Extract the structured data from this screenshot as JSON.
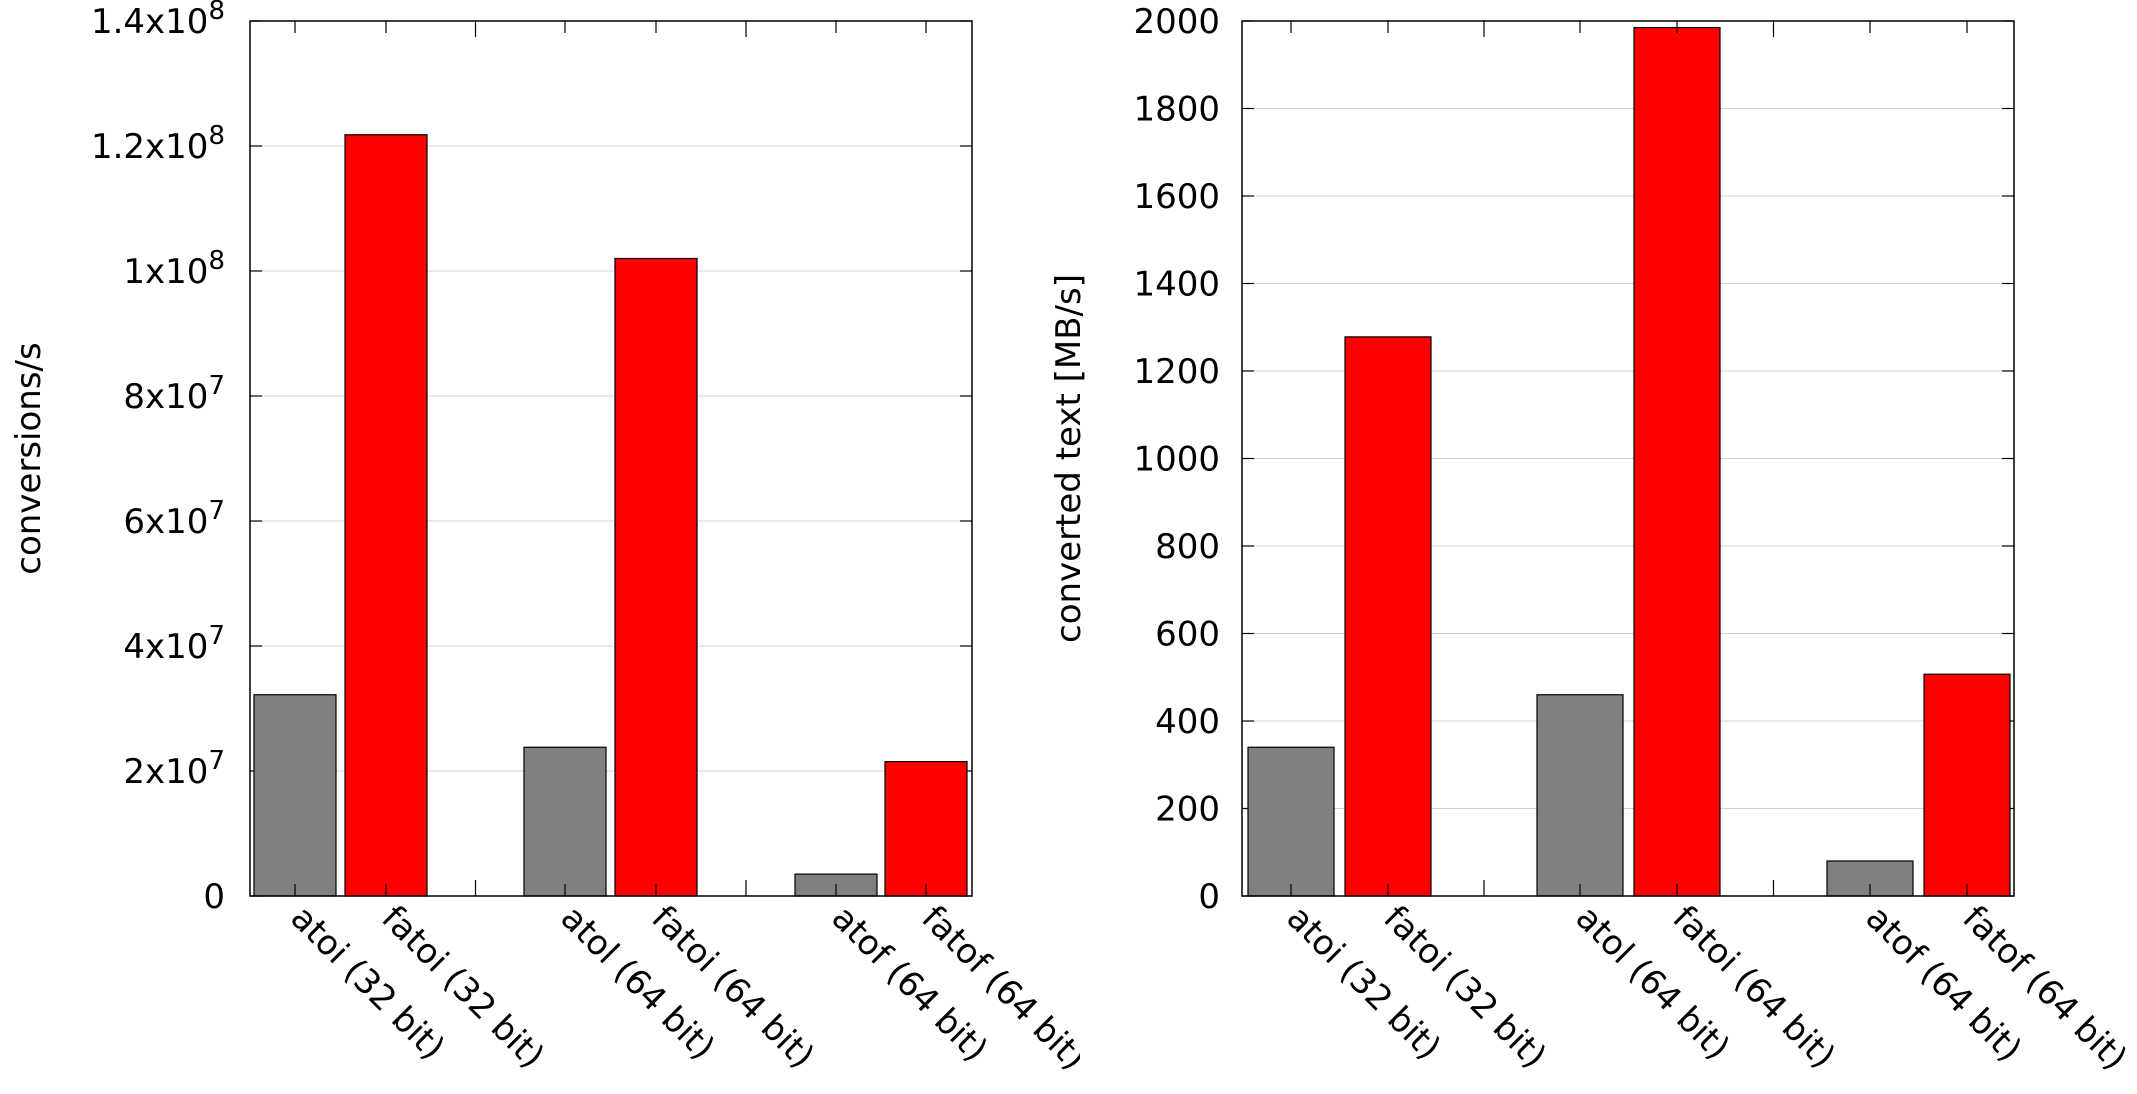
{
  "colors": {
    "baseline": "#808080",
    "fast": "#ff0000",
    "grid": "#d0d0d0",
    "axis": "#000000"
  },
  "chart_data": [
    {
      "type": "bar",
      "title": "",
      "xlabel": "",
      "ylabel": "conversions/s",
      "ylim": [
        0,
        140000000
      ],
      "yticks": [
        {
          "value": 0,
          "mantissa": "0",
          "exponent": ""
        },
        {
          "value": 20000000,
          "mantissa": "2x10",
          "exponent": "7"
        },
        {
          "value": 40000000,
          "mantissa": "4x10",
          "exponent": "7"
        },
        {
          "value": 60000000,
          "mantissa": "6x10",
          "exponent": "7"
        },
        {
          "value": 80000000,
          "mantissa": "8x10",
          "exponent": "7"
        },
        {
          "value": 100000000,
          "mantissa": "1x10",
          "exponent": "8"
        },
        {
          "value": 120000000,
          "mantissa": "1.2x10",
          "exponent": "8"
        },
        {
          "value": 140000000,
          "mantissa": "1.4x10",
          "exponent": "8"
        }
      ],
      "grid": true,
      "categories": [
        "atoi (32 bit)",
        "fatoi (32 bit)",
        "atol (64 bit)",
        "fatoi (64 bit)",
        "atof (64 bit)",
        "fatof (64 bit)"
      ],
      "values": [
        32200000,
        121800000,
        23800000,
        102000000,
        3500000,
        21500000
      ],
      "bar_colors": [
        "#808080",
        "#ff0000",
        "#808080",
        "#ff0000",
        "#808080",
        "#ff0000"
      ]
    },
    {
      "type": "bar",
      "title": "",
      "xlabel": "",
      "ylabel": "converted text [MB/s]",
      "ylim": [
        0,
        2000
      ],
      "yticks": [
        {
          "value": 0,
          "mantissa": "0",
          "exponent": ""
        },
        {
          "value": 200,
          "mantissa": "200",
          "exponent": ""
        },
        {
          "value": 400,
          "mantissa": "400",
          "exponent": ""
        },
        {
          "value": 600,
          "mantissa": "600",
          "exponent": ""
        },
        {
          "value": 800,
          "mantissa": "800",
          "exponent": ""
        },
        {
          "value": 1000,
          "mantissa": "1000",
          "exponent": ""
        },
        {
          "value": 1200,
          "mantissa": "1200",
          "exponent": ""
        },
        {
          "value": 1400,
          "mantissa": "1400",
          "exponent": ""
        },
        {
          "value": 1600,
          "mantissa": "1600",
          "exponent": ""
        },
        {
          "value": 1800,
          "mantissa": "1800",
          "exponent": ""
        },
        {
          "value": 2000,
          "mantissa": "2000",
          "exponent": ""
        }
      ],
      "grid": true,
      "categories": [
        "atoi (32 bit)",
        "fatoi (32 bit)",
        "atol (64 bit)",
        "fatoi (64 bit)",
        "atof (64 bit)",
        "fatof (64 bit)"
      ],
      "values": [
        340,
        1278,
        460,
        1985,
        80,
        507
      ],
      "bar_colors": [
        "#808080",
        "#ff0000",
        "#808080",
        "#ff0000",
        "#808080",
        "#ff0000"
      ]
    }
  ]
}
